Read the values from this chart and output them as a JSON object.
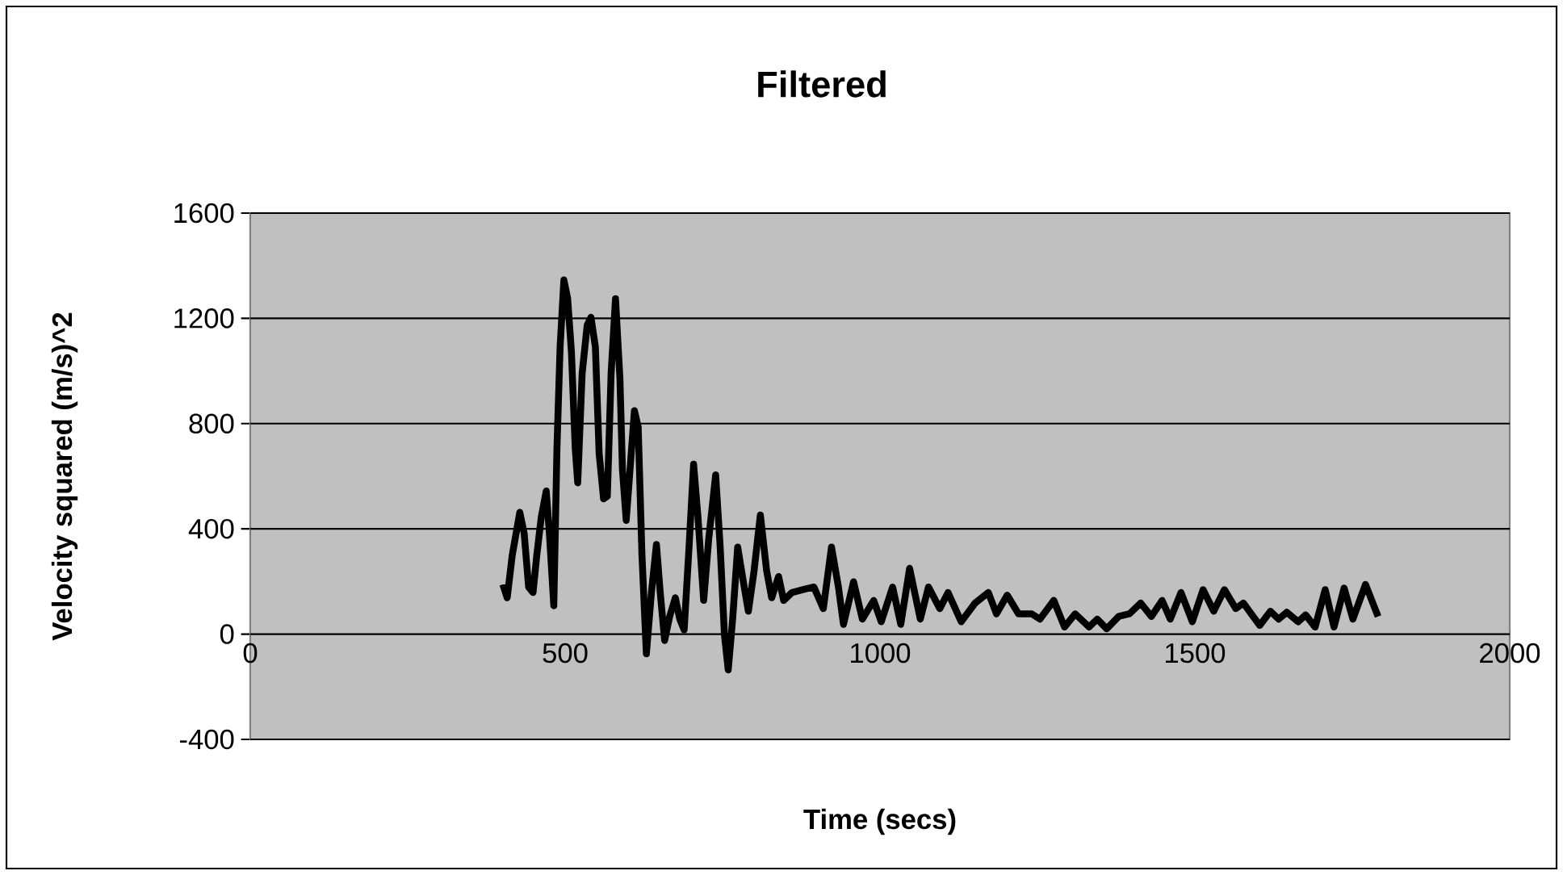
{
  "chart_data": {
    "type": "line",
    "title": "Filtered",
    "xlabel": "Time (secs)",
    "ylabel": "Velocity squared (m/s)^2",
    "xlim": [
      0,
      2000
    ],
    "xticks": [
      0,
      500,
      1000,
      1500,
      2000
    ],
    "ylim": [
      -400,
      1600
    ],
    "yticks": [
      -400,
      0,
      400,
      800,
      1200,
      1600
    ],
    "grid": "y",
    "marker": "none",
    "line_style": "solid",
    "series": [
      {
        "color": "#000000",
        "x": [
          401,
          408,
          416,
          428,
          435,
          442,
          449,
          455,
          462,
          470,
          475,
          482,
          487,
          492,
          498,
          504,
          510,
          516,
          520,
          527,
          535,
          541,
          548,
          554,
          561,
          567,
          573,
          580,
          587,
          591,
          597,
          603,
          610,
          616,
          622,
          629,
          637,
          645,
          651,
          658,
          666,
          675,
          682,
          689,
          697,
          704,
          711,
          720,
          728,
          739,
          746,
          753,
          759,
          766,
          774,
          783,
          791,
          800,
          810,
          820,
          828,
          839,
          847,
          860,
          878,
          895,
          910,
          923,
          934,
          942,
          958,
          972,
          990,
          1002,
          1020,
          1033,
          1047,
          1064,
          1077,
          1095,
          1108,
          1129,
          1151,
          1172,
          1185,
          1202,
          1220,
          1241,
          1254,
          1276,
          1293,
          1310,
          1332,
          1345,
          1360,
          1379,
          1396,
          1414,
          1431,
          1448,
          1461,
          1478,
          1496,
          1513,
          1530,
          1547,
          1565,
          1577,
          1603,
          1620,
          1633,
          1646,
          1664,
          1676,
          1691,
          1707,
          1721,
          1737,
          1751,
          1771,
          1791
        ],
        "values": [
          189,
          138,
          300,
          463,
          382,
          179,
          158,
          300,
          443,
          544,
          382,
          108,
          707,
          1092,
          1346,
          1275,
          1072,
          707,
          575,
          991,
          1174,
          1204,
          1092,
          686,
          514,
          524,
          991,
          1275,
          971,
          625,
          432,
          625,
          849,
          788,
          300,
          -75,
          158,
          341,
          158,
          -24,
          67,
          138,
          57,
          16,
          341,
          646,
          443,
          128,
          361,
          605,
          341,
          -4,
          -136,
          57,
          331,
          199,
          87,
          240,
          453,
          240,
          138,
          219,
          128,
          158,
          169,
          179,
          97,
          331,
          179,
          37,
          199,
          57,
          128,
          47,
          179,
          37,
          250,
          57,
          179,
          97,
          158,
          47,
          118,
          158,
          77,
          148,
          77,
          77,
          57,
          128,
          27,
          77,
          27,
          57,
          20,
          67,
          77,
          118,
          67,
          128,
          57,
          158,
          47,
          169,
          87,
          169,
          97,
          118,
          33,
          87,
          57,
          83,
          47,
          73,
          27,
          169,
          27,
          175,
          57,
          189,
          67
        ]
      }
    ]
  }
}
